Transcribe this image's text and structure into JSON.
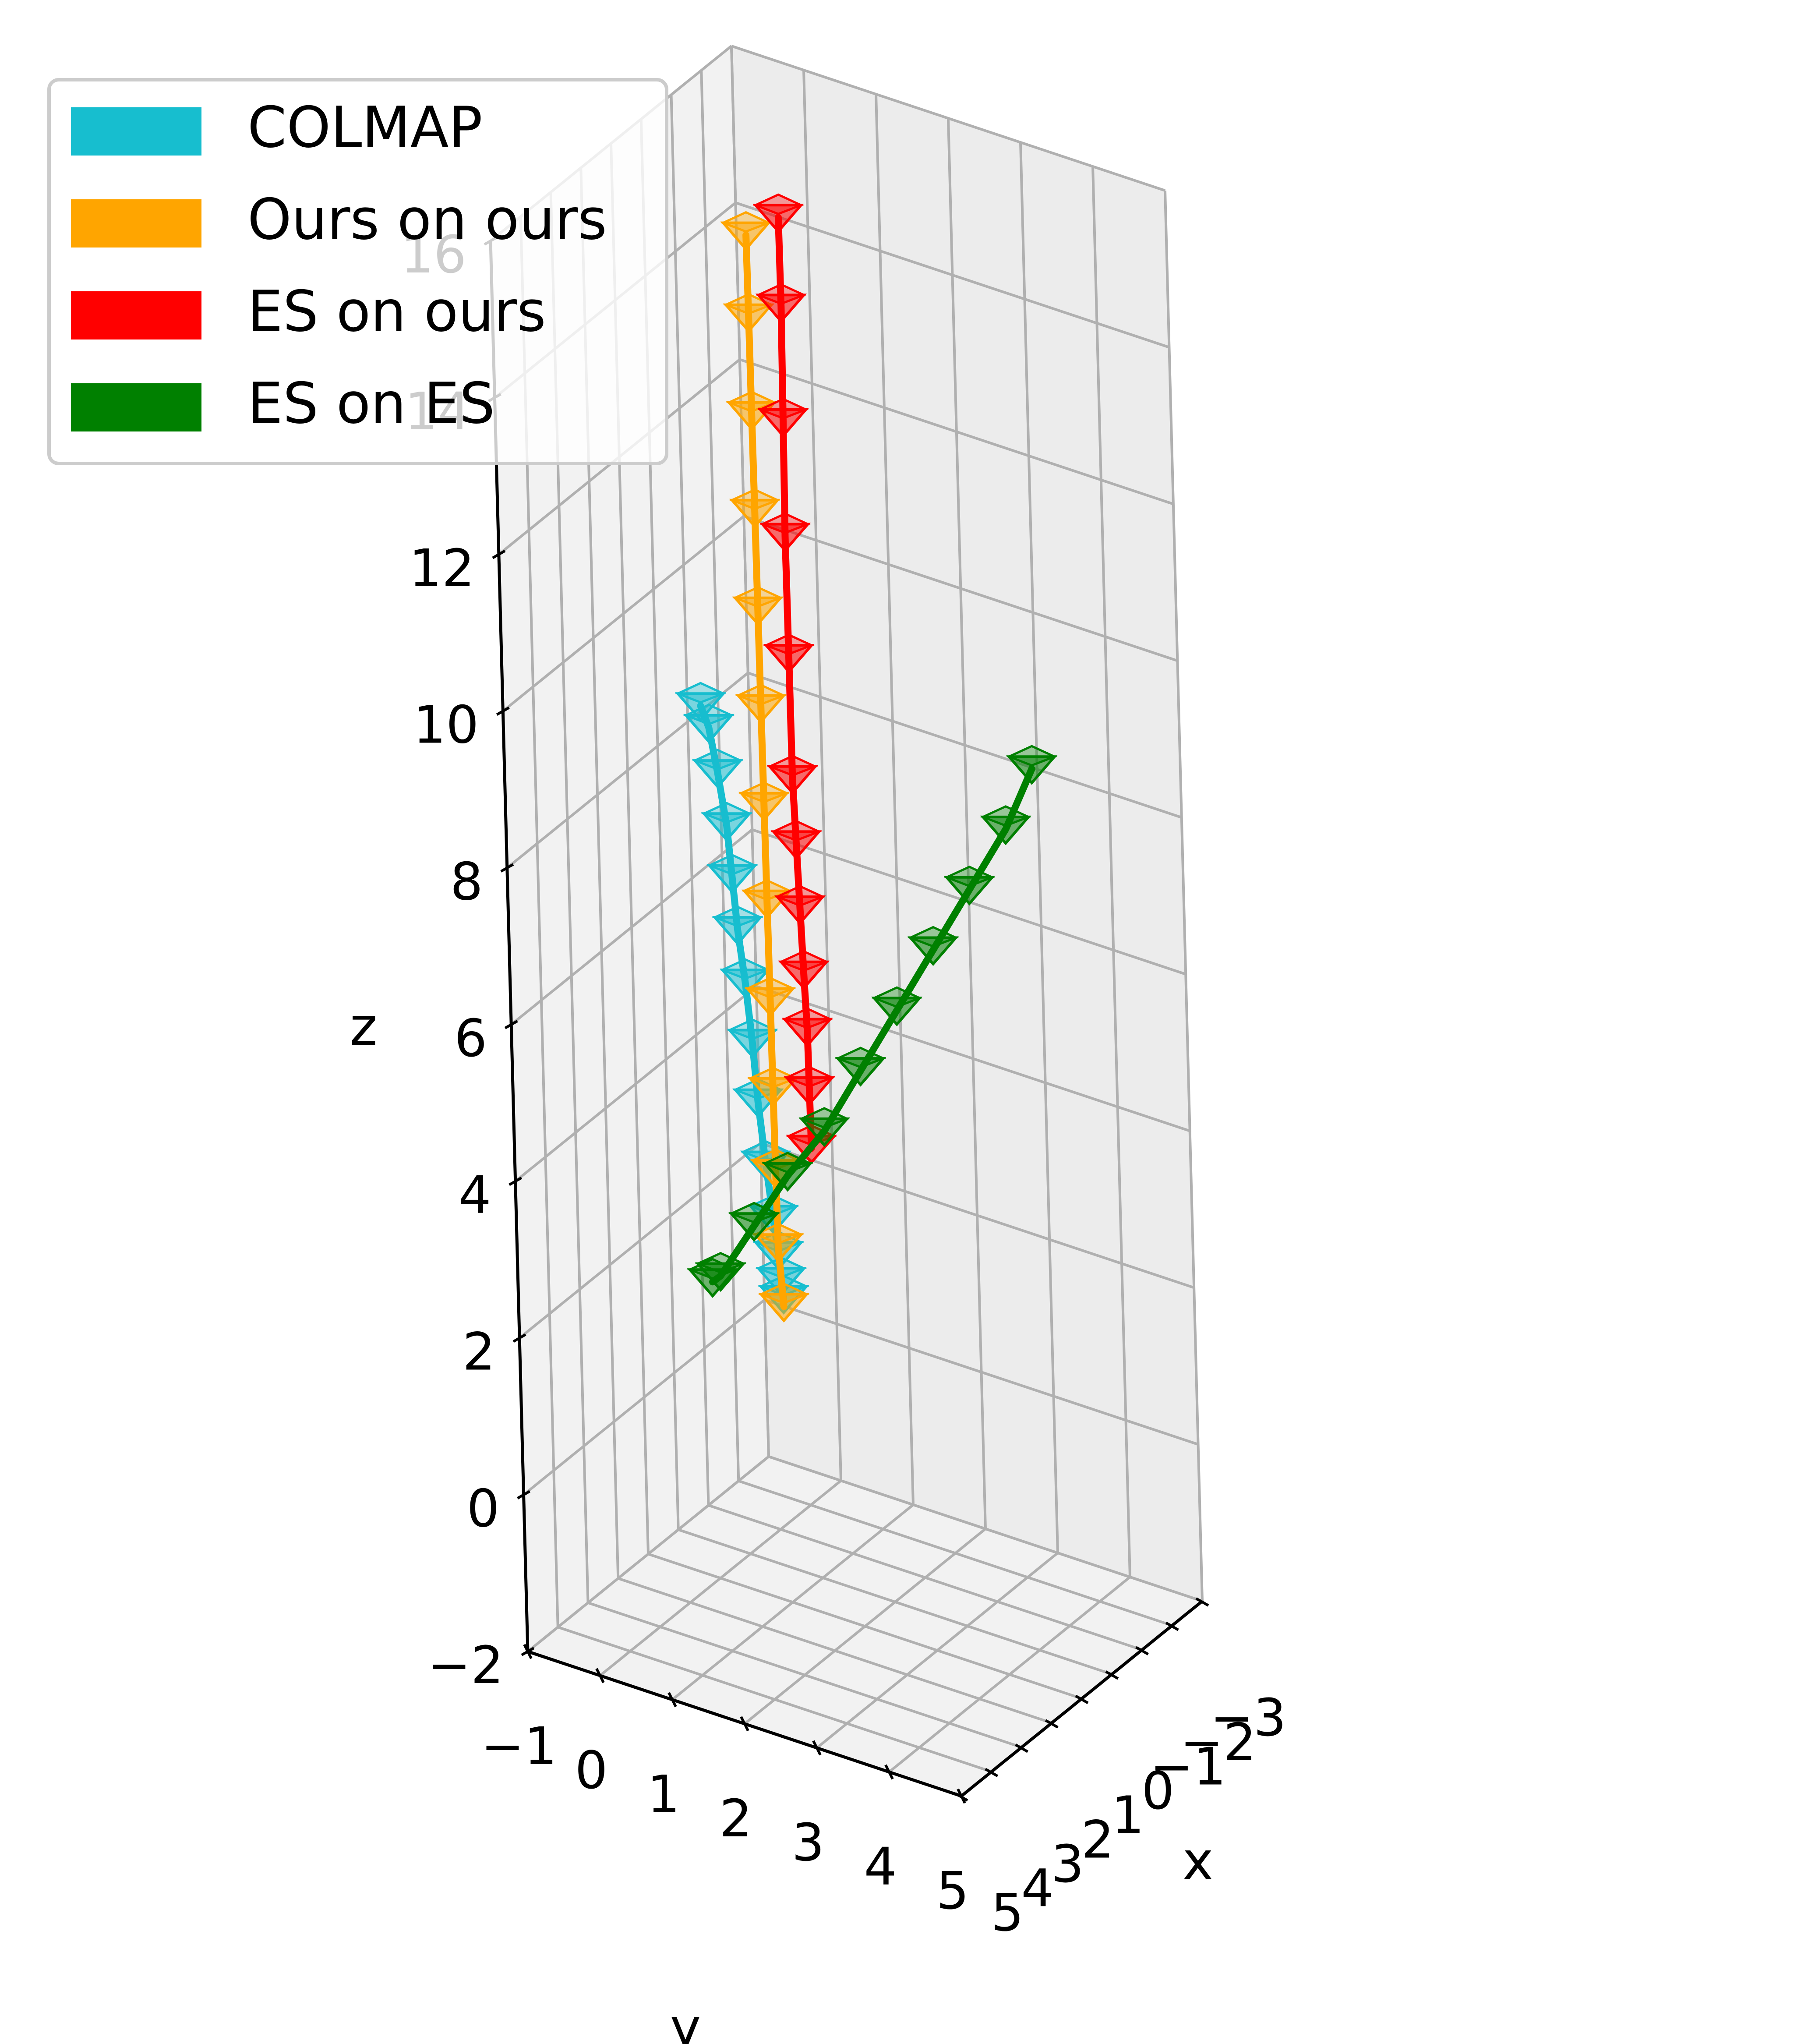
{
  "chart_data": {
    "type": "line",
    "projection": "3d",
    "title": "",
    "xlabel": "x",
    "ylabel": "y",
    "zlabel": "z",
    "x_ticks": [
      "−3",
      "−2",
      "−1",
      "0",
      "1",
      "2",
      "3",
      "4",
      "5"
    ],
    "y_ticks": [
      "−1",
      "0",
      "1",
      "2",
      "3",
      "4",
      "5"
    ],
    "z_ticks": [
      "−2",
      "0",
      "2",
      "4",
      "6",
      "8",
      "10",
      "12",
      "14",
      "16"
    ],
    "xlim": [
      -3,
      5
    ],
    "ylim": [
      -1,
      5
    ],
    "zlim": [
      -2,
      16
    ],
    "grid": true,
    "legend_position": "top-left",
    "marker": "camera-frustum",
    "series": [
      {
        "name": "COLMAP",
        "color": "#17becf",
        "points": [
          [
            0.9,
            0.0,
            9.1
          ],
          [
            1.0,
            0.15,
            8.9
          ],
          [
            1.1,
            0.3,
            8.4
          ],
          [
            1.2,
            0.45,
            7.8
          ],
          [
            1.3,
            0.55,
            7.2
          ],
          [
            1.4,
            0.65,
            6.6
          ],
          [
            1.5,
            0.78,
            6.0
          ],
          [
            1.6,
            0.9,
            5.3
          ],
          [
            1.7,
            1.0,
            4.6
          ],
          [
            1.85,
            1.15,
            3.9
          ],
          [
            2.0,
            1.3,
            3.3
          ],
          [
            2.1,
            1.4,
            2.9
          ],
          [
            2.15,
            1.45,
            2.6
          ],
          [
            2.2,
            1.5,
            2.4
          ]
        ]
      },
      {
        "name": "Ours on ours",
        "color": "#ffa500",
        "points": [
          [
            2.2,
            1.5,
            2.3
          ],
          [
            2.1,
            1.4,
            3.0
          ],
          [
            2.0,
            1.35,
            3.9
          ],
          [
            1.9,
            1.3,
            4.9
          ],
          [
            1.8,
            1.25,
            6.0
          ],
          [
            1.7,
            1.2,
            7.2
          ],
          [
            1.6,
            1.15,
            8.4
          ],
          [
            1.5,
            1.1,
            9.6
          ],
          [
            1.4,
            1.05,
            10.8
          ],
          [
            1.3,
            1.0,
            12.0
          ],
          [
            1.2,
            0.95,
            13.2
          ],
          [
            1.1,
            0.9,
            14.4
          ],
          [
            1.0,
            0.85,
            15.4
          ]
        ]
      },
      {
        "name": "ES on ours",
        "color": "#ff0000",
        "points": [
          [
            1.4,
            1.6,
            4.1
          ],
          [
            1.3,
            1.55,
            4.8
          ],
          [
            1.2,
            1.5,
            5.5
          ],
          [
            1.15,
            1.45,
            6.2
          ],
          [
            1.1,
            1.4,
            7.0
          ],
          [
            1.05,
            1.35,
            7.8
          ],
          [
            1.0,
            1.3,
            8.6
          ],
          [
            0.9,
            1.25,
            10.1
          ],
          [
            0.8,
            1.2,
            11.6
          ],
          [
            0.65,
            1.15,
            13.0
          ],
          [
            0.5,
            1.1,
            14.4
          ],
          [
            0.4,
            1.05,
            15.5
          ]
        ]
      },
      {
        "name": "ES on ES",
        "color": "#008000",
        "points": [
          [
            2.4,
            0.6,
            2.4
          ],
          [
            2.6,
            0.8,
            2.6
          ],
          [
            2.4,
            1.2,
            3.3
          ],
          [
            2.2,
            1.6,
            4.0
          ],
          [
            1.9,
            2.0,
            4.6
          ],
          [
            1.6,
            2.4,
            5.4
          ],
          [
            1.3,
            2.8,
            6.2
          ],
          [
            1.0,
            3.2,
            7.0
          ],
          [
            0.7,
            3.6,
            7.8
          ],
          [
            0.4,
            4.0,
            8.6
          ],
          [
            0.2,
            4.3,
            9.4
          ]
        ]
      }
    ]
  }
}
